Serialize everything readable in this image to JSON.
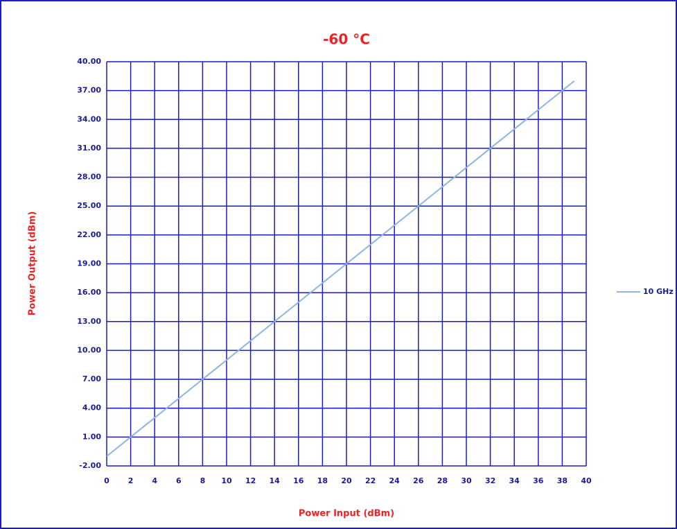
{
  "chart_data": {
    "type": "line",
    "title": "-60 °C",
    "x_label": "Power Input (dBm)",
    "y_label": "Power Output (dBm)",
    "x": [
      0,
      5,
      10,
      15,
      20,
      25,
      30,
      35,
      39
    ],
    "series": [
      {
        "name": "10 GHz",
        "color": "#8fb4e3",
        "values": [
          -1,
          4,
          9,
          14,
          19,
          24,
          29,
          34,
          38
        ]
      }
    ],
    "xlim": [
      0,
      40
    ],
    "xticks": [
      0,
      2,
      4,
      6,
      8,
      10,
      12,
      14,
      16,
      18,
      20,
      22,
      24,
      26,
      28,
      30,
      32,
      34,
      36,
      38,
      40
    ],
    "ylim": [
      -2,
      40
    ],
    "yticks": [
      {
        "value": -2,
        "label": "-2.00"
      },
      {
        "value": 1,
        "label": "1.00"
      },
      {
        "value": 4,
        "label": "4.00"
      },
      {
        "value": 7,
        "label": "7.00"
      },
      {
        "value": 10,
        "label": "10.00"
      },
      {
        "value": 13,
        "label": "13.00"
      },
      {
        "value": 16,
        "label": "16.00"
      },
      {
        "value": 19,
        "label": "19.00"
      },
      {
        "value": 22,
        "label": "22.00"
      },
      {
        "value": 25,
        "label": "25.00"
      },
      {
        "value": 28,
        "label": "28.00"
      },
      {
        "value": 31,
        "label": "31.00"
      },
      {
        "value": 34,
        "label": "34.00"
      },
      {
        "value": 37,
        "label": "37.00"
      },
      {
        "value": 40,
        "label": "40.00"
      }
    ],
    "grid": true,
    "grid_color": "#1a1acc",
    "legend": "right"
  }
}
